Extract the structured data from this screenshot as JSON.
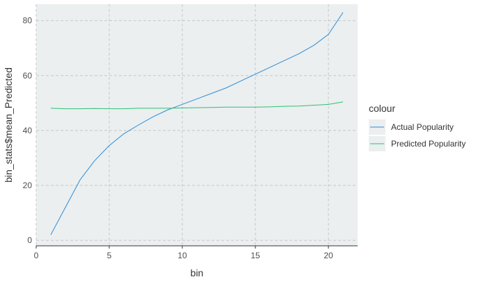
{
  "chart_data": {
    "type": "line",
    "title": "",
    "xlabel": "bin",
    "ylabel": "bin_stats$mean_Predicted",
    "xlim": [
      0,
      22
    ],
    "ylim": [
      -2,
      86
    ],
    "xticks": [
      0,
      5,
      10,
      15,
      20
    ],
    "yticks": [
      0,
      20,
      40,
      60,
      80
    ],
    "grid": true,
    "legend": {
      "title": "colour",
      "position": "right"
    },
    "x": [
      1,
      2,
      3,
      4,
      5,
      6,
      7,
      8,
      9,
      10,
      11,
      12,
      13,
      14,
      15,
      16,
      17,
      18,
      19,
      20,
      21
    ],
    "series": [
      {
        "name": "Actual Popularity",
        "color": "#2b8cd6",
        "values": [
          2,
          12,
          22,
          29,
          34.5,
          38.8,
          42,
          45,
          47.5,
          49.5,
          51.5,
          53.5,
          55.5,
          58,
          60.5,
          63,
          65.5,
          68,
          71,
          75,
          83
        ]
      },
      {
        "name": "Predicted Popularity",
        "color": "#2fbf71",
        "values": [
          48.1,
          47.9,
          47.9,
          48,
          47.9,
          47.9,
          48.1,
          48.1,
          48.1,
          48.2,
          48.3,
          48.4,
          48.5,
          48.5,
          48.5,
          48.6,
          48.8,
          48.9,
          49.2,
          49.5,
          50.4
        ]
      }
    ]
  }
}
